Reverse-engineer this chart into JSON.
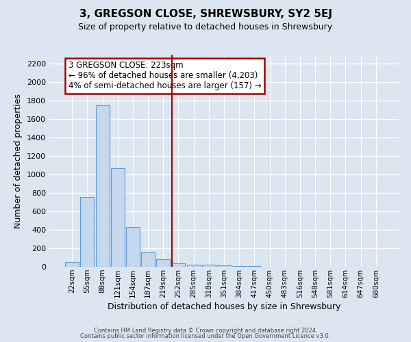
{
  "title": "3, GREGSON CLOSE, SHREWSBURY, SY2 5EJ",
  "subtitle": "Size of property relative to detached houses in Shrewsbury",
  "xlabel": "Distribution of detached houses by size in Shrewsbury",
  "ylabel": "Number of detached properties",
  "bar_color": "#c5d8ee",
  "bar_edge_color": "#5b9bd5",
  "background_color": "#dce6f0",
  "grid_color": "#ffffff",
  "categories": [
    "22sqm",
    "55sqm",
    "88sqm",
    "121sqm",
    "154sqm",
    "187sqm",
    "219sqm",
    "252sqm",
    "285sqm",
    "318sqm",
    "351sqm",
    "384sqm",
    "417sqm",
    "450sqm",
    "483sqm",
    "516sqm",
    "548sqm",
    "581sqm",
    "614sqm",
    "647sqm",
    "680sqm"
  ],
  "values": [
    50,
    760,
    1750,
    1070,
    430,
    155,
    80,
    40,
    25,
    20,
    15,
    10,
    10,
    0,
    0,
    0,
    0,
    0,
    0,
    0,
    0
  ],
  "ylim": [
    0,
    2300
  ],
  "yticks": [
    0,
    200,
    400,
    600,
    800,
    1000,
    1200,
    1400,
    1600,
    1800,
    2000,
    2200
  ],
  "vline_x": 6.57,
  "vline_color": "#aa0000",
  "annotation_title": "3 GREGSON CLOSE: 223sqm",
  "annotation_line1": "← 96% of detached houses are smaller (4,203)",
  "annotation_line2": "4% of semi-detached houses are larger (157) →",
  "annotation_box_color": "#ffffff",
  "annotation_box_edge": "#aa0000",
  "footer_line1": "Contains HM Land Registry data © Crown copyright and database right 2024.",
  "footer_line2": "Contains public sector information licensed under the Open Government Licence v3.0."
}
